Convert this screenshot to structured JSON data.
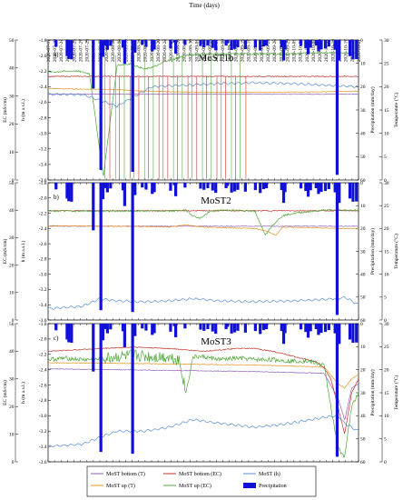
{
  "figure": {
    "top_axis_title": "Time (days)",
    "dates": [
      "2020-07-17",
      "2020-07-19",
      "2020-07-21",
      "2020-07-23",
      "2020-07-25",
      "2020-07-27",
      "2020-07-29",
      "2020-07-31",
      "2020-08-02",
      "2020-08-04",
      "2020-08-06",
      "2020-08-08",
      "2020-08-10",
      "2020-08-12",
      "2020-08-14",
      "2020-08-16",
      "2020-08-18",
      "2020-08-20",
      "2020-08-22",
      "2020-08-24",
      "2020-08-26",
      "2020-08-28",
      "2020-08-30",
      "2020-09-01",
      "2020-09-03",
      "2020-09-05",
      "2020-09-07",
      "2020-09-09",
      "2020-09-11",
      "2020-09-13",
      "2020-09-15",
      "2020-09-17",
      "2020-09-19",
      "2020-09-21",
      "2020-09-23",
      "2020-09-25",
      "2020-09-27",
      "2020-09-29",
      "2020-10-01",
      "2020-10-03",
      "2020-10-05",
      "2020-10-07",
      "2020-10-09",
      "2020-10-11",
      "2020-10-13",
      "2020-10-15",
      "2020-10-17",
      "2020-10-19",
      "2020-10-21"
    ],
    "colors": {
      "bottom_t": "#8e63b5",
      "up_t": "#e8951e",
      "bottom_ec": "#c2332a",
      "up_ec": "#4fa83a",
      "h": "#5b8fd6",
      "precip": "#1010d8"
    },
    "legend": [
      {
        "key": "bottom_t",
        "label": "MoST bottom (T)",
        "kind": "line"
      },
      {
        "key": "bottom_ec",
        "label": "MoST bottom (EC)",
        "kind": "line"
      },
      {
        "key": "h",
        "label": "MoST (h)",
        "kind": "line"
      },
      {
        "key": "up_t",
        "label": "MoST up (T)",
        "kind": "line"
      },
      {
        "key": "up_ec",
        "label": "MoST up (EC)",
        "kind": "line"
      },
      {
        "key": "precip",
        "label": "Precipitation",
        "kind": "bar"
      }
    ]
  },
  "chart_data": [
    {
      "type": "line",
      "panel_label": "a)",
      "title": "MoST1b",
      "xlabel": "Time (days)",
      "y_left_outer": {
        "label": "EC (mS/cm)",
        "ticks": [
          0,
          10,
          20,
          30,
          40,
          50
        ]
      },
      "y_left_inner": {
        "label": "h (m a.s.l.)",
        "ticks": [
          -1.8,
          -2.0,
          -2.2,
          -2.4,
          -2.6,
          -2.8,
          -3.0,
          -3.2,
          -3.4,
          -3.6
        ]
      },
      "y_right_inner": {
        "label": "Precipitation (mm/day)",
        "ticks": [
          0,
          10,
          20,
          30,
          40,
          50,
          60
        ]
      },
      "y_right_outer": {
        "label": "Temperature (°C)",
        "ticks": [
          0,
          5,
          10,
          15,
          20,
          25,
          30
        ]
      },
      "precipitation": {
        "x": [
          2.3,
          5.5,
          6,
          6.8,
          13.1,
          15.3,
          15.9,
          16.5,
          17.2,
          18.1,
          21.7,
          22.2,
          24.5,
          25.2,
          27.3,
          28.4,
          30.2,
          30.8,
          35.5,
          36.6,
          37,
          39.7,
          44.2,
          45.2,
          46.3,
          47.7,
          48.6,
          51.6,
          52,
          53.2,
          54.1,
          55,
          57.2,
          60.1,
          61.5,
          62.5,
          63.3,
          67.7,
          68.3,
          68.7,
          73.3,
          74.7,
          75.4,
          76.1,
          77.7,
          78.4,
          79.2,
          80.4,
          81.4,
          83.2,
          83.8,
          84.4,
          87.5,
          88.4,
          89.4
        ],
        "y": [
          2.9,
          6.9,
          8.1,
          8.3,
          20.8,
          55.7,
          7.2,
          2.4,
          4.2,
          2.5,
          3.3,
          10.2,
          56.5,
          5.4,
          2.1,
          3,
          4.9,
          4.1,
          3.5,
          1.1,
          5.9,
          2.1,
          2.6,
          3.1,
          2.4,
          3.4,
          4.4,
          2.4,
          1.4,
          4.3,
          3.8,
          3.1,
          3.9,
          3.2,
          4.5,
          2.8,
          2.4,
          3.2,
          8.8,
          4.1,
          2.5,
          3.6,
          6.1,
          3.3,
          2.4,
          4.9,
          4,
          3.6,
          2.8,
          4.2,
          57.8,
          8.8,
          6.9,
          8.3,
          8.2
        ]
      },
      "series": [
        {
          "name": "MoST bottom (T)",
          "key": "bottom_t",
          "axis": "temperature",
          "x": [
            0,
            90
          ],
          "y": [
            18.4,
            18.4
          ]
        },
        {
          "name": "MoST up (T)",
          "key": "up_t",
          "axis": "temperature",
          "x": [
            0,
            18,
            27,
            35,
            50,
            65,
            80,
            90
          ],
          "y": [
            19.6,
            19.4,
            19.1,
            18.9,
            18.8,
            18.8,
            18.9,
            19.0
          ]
        },
        {
          "name": "MoST bottom (EC)",
          "key": "bottom_ec",
          "axis": "ec",
          "x": [
            0,
            90
          ],
          "y": [
            37.0,
            37.0
          ]
        },
        {
          "name": "MoST up (EC)",
          "key": "up_ec",
          "axis": "ec",
          "x": [
            0,
            8,
            12,
            16,
            20,
            24,
            26,
            28,
            32,
            34,
            36,
            40,
            44,
            48,
            52,
            56,
            60,
            64,
            68,
            72,
            76,
            80,
            84,
            86,
            88,
            90
          ],
          "y": [
            38.5,
            39,
            38,
            1,
            41,
            41.5,
            40.5,
            39.5,
            41,
            42.5,
            43,
            44.5,
            45,
            45,
            45,
            45,
            45,
            45,
            45,
            45,
            45.5,
            45.5,
            45.5,
            45.5,
            45.5,
            45.5
          ]
        },
        {
          "name": "MoST (h)",
          "key": "h",
          "axis": "h",
          "x": [
            0,
            10,
            20,
            30,
            40,
            50,
            60,
            70,
            80,
            90
          ],
          "y": [
            -2.5,
            -2.5,
            -2.65,
            -2.4,
            -2.38,
            -2.36,
            -2.35,
            -2.36,
            -2.38,
            -2.4
          ]
        }
      ]
    },
    {
      "type": "line",
      "panel_label": "b)",
      "title": "MoST2",
      "xlabel": "Time (days)",
      "y_left_outer": {
        "label": "EC (mS/cm)",
        "ticks": [
          0,
          10,
          20,
          30,
          40,
          50
        ]
      },
      "y_left_inner": {
        "label": "h (m a.s.l.)",
        "ticks": [
          -1.8,
          -2.0,
          -2.2,
          -2.4,
          -2.6,
          -2.8,
          -3.0,
          -3.2,
          -3.4,
          -3.6
        ]
      },
      "y_right_inner": {
        "label": "Precipitation (mm/day)",
        "ticks": [
          0,
          10,
          20,
          30,
          40,
          50,
          60
        ]
      },
      "y_right_outer": {
        "label": "Temperature (°C)",
        "ticks": [
          0,
          5,
          10,
          15,
          20,
          25,
          30
        ]
      },
      "precipitation": {
        "x": [
          2.3,
          5.5,
          6,
          6.8,
          13.1,
          15.3,
          15.9,
          16.5,
          17.2,
          18.1,
          21.7,
          22.2,
          24.5,
          25.2,
          27.3,
          28.4,
          30.2,
          30.8,
          35.5,
          36.6,
          37,
          39.7,
          44.2,
          45.2,
          46.3,
          47.7,
          48.6,
          51.6,
          52,
          53.2,
          54.1,
          55,
          57.2,
          60.1,
          61.5,
          62.5,
          63.3,
          67.7,
          68.3,
          68.7,
          73.3,
          74.7,
          75.4,
          76.1,
          77.7,
          78.4,
          79.2,
          80.4,
          81.4,
          83.2,
          83.8,
          84.4,
          87.5,
          88.4,
          89.4
        ],
        "y": [
          2.9,
          6.9,
          8.1,
          8.3,
          20.8,
          55.7,
          7.2,
          2.4,
          4.2,
          2.5,
          3.3,
          10.2,
          56.5,
          5.4,
          2.1,
          3,
          4.9,
          4.1,
          3.5,
          1.1,
          5.9,
          2.1,
          2.6,
          3.1,
          2.4,
          3.4,
          4.4,
          2.4,
          1.4,
          4.3,
          3.8,
          3.1,
          3.9,
          3.2,
          4.5,
          2.8,
          2.4,
          3.2,
          8.8,
          4.1,
          2.5,
          3.6,
          6.1,
          3.3,
          2.4,
          4.9,
          4,
          3.6,
          2.8,
          4.2,
          57.8,
          8.8,
          6.9,
          8.3,
          8.2
        ]
      },
      "series": [
        {
          "name": "MoST bottom (T)",
          "key": "bottom_t",
          "axis": "temperature",
          "x": [
            0,
            90
          ],
          "y": [
            20.5,
            20.5
          ]
        },
        {
          "name": "MoST up (T)",
          "key": "up_t",
          "axis": "temperature",
          "x": [
            0,
            30,
            35,
            40,
            45,
            50,
            55,
            60,
            63,
            66,
            68,
            75,
            80,
            84,
            86,
            90
          ],
          "y": [
            20.6,
            20.4,
            20.3,
            20.8,
            20.3,
            20.2,
            20.1,
            20.0,
            19.5,
            18.5,
            20.3,
            20.2,
            20.1,
            20.0,
            20.0,
            20.0
          ]
        },
        {
          "name": "MoST bottom (EC)",
          "key": "bottom_ec",
          "axis": "ec",
          "x": [
            0,
            90
          ],
          "y": [
            39.8,
            39.8
          ]
        },
        {
          "name": "MoST up (EC)",
          "key": "up_ec",
          "axis": "ec",
          "x": [
            0,
            20,
            25,
            30,
            35,
            40,
            42,
            44,
            47,
            50,
            55,
            60,
            63,
            65,
            68,
            72,
            76,
            80,
            84,
            86,
            90
          ],
          "y": [
            39.7,
            39.7,
            39.7,
            39.7,
            39.7,
            40,
            38,
            37,
            39.5,
            40,
            40,
            39.5,
            31,
            34.5,
            38,
            39,
            39.5,
            40,
            40,
            40,
            40
          ]
        },
        {
          "name": "MoST (h)",
          "key": "h",
          "axis": "h",
          "x": [
            0,
            10,
            15,
            20,
            28,
            35,
            42,
            50,
            60,
            70,
            80,
            84,
            86,
            90
          ],
          "y": [
            -3.45,
            -3.42,
            -3.32,
            -3.35,
            -3.36,
            -3.35,
            -3.32,
            -3.35,
            -3.36,
            -3.35,
            -3.33,
            -3.32,
            -3.3,
            -3.4
          ]
        }
      ]
    },
    {
      "type": "line",
      "panel_label": "c)",
      "title": "MoST3",
      "xlabel": "Time (days)",
      "y_left_outer": {
        "label": "EC (mS/cm)",
        "ticks": [
          0,
          10,
          20,
          30,
          40,
          50
        ]
      },
      "y_left_inner": {
        "label": "h (m a.s.l.)",
        "ticks": [
          -1.8,
          -2.0,
          -2.2,
          -2.4,
          -2.6,
          -2.8,
          -3.0,
          -3.2,
          -3.4,
          -3.6
        ]
      },
      "y_right_inner": {
        "label": "Precipitation (mm/day)",
        "ticks": [
          0,
          10,
          20,
          30,
          40,
          50,
          60
        ]
      },
      "y_right_outer": {
        "label": "Temperature (°C)",
        "ticks": [
          0,
          5,
          10,
          15,
          20,
          25,
          30
        ]
      },
      "precipitation": {
        "x": [
          2.3,
          5.5,
          6,
          6.8,
          13.1,
          15.3,
          15.9,
          16.5,
          17.2,
          18.1,
          21.7,
          22.2,
          24.5,
          25.2,
          27.3,
          28.4,
          30.2,
          30.8,
          35.5,
          36.6,
          37,
          39.7,
          44.2,
          45.2,
          46.3,
          47.7,
          48.6,
          51.6,
          52,
          53.2,
          54.1,
          55,
          57.2,
          60.1,
          61.5,
          62.5,
          63.3,
          67.7,
          68.3,
          68.7,
          73.3,
          74.7,
          75.4,
          76.1,
          77.7,
          78.4,
          79.2,
          80.4,
          81.4,
          83.2,
          83.8,
          84.4,
          87.5,
          88.4,
          89.4
        ],
        "y": [
          2.9,
          6.9,
          8.1,
          8.3,
          20.8,
          55.7,
          7.2,
          2.4,
          4.2,
          2.5,
          3.3,
          10.2,
          56.5,
          5.4,
          2.1,
          3,
          4.9,
          4.1,
          3.5,
          1.1,
          5.9,
          2.1,
          2.6,
          3.1,
          2.4,
          3.4,
          4.4,
          2.4,
          1.4,
          4.3,
          3.8,
          3.1,
          3.9,
          3.2,
          4.5,
          2.8,
          2.4,
          3.2,
          8.8,
          4.1,
          2.5,
          3.6,
          6.1,
          3.3,
          2.4,
          4.9,
          4,
          3.6,
          2.8,
          4.2,
          57.8,
          8.8,
          6.9,
          8.3,
          8.2
        ]
      },
      "series": [
        {
          "name": "MoST bottom (T)",
          "key": "bottom_t",
          "axis": "temperature",
          "x": [
            0,
            20,
            40,
            60,
            80,
            84,
            86,
            88,
            90
          ],
          "y": [
            20.2,
            20.0,
            19.8,
            19.6,
            19.2,
            14,
            9,
            16,
            17
          ]
        },
        {
          "name": "MoST up (T)",
          "key": "up_t",
          "axis": "temperature",
          "x": [
            0,
            20,
            40,
            60,
            80,
            84,
            86,
            88,
            90
          ],
          "y": [
            21.5,
            21.4,
            21.2,
            21.0,
            20.6,
            17,
            16,
            18,
            19
          ]
        },
        {
          "name": "MoST bottom (EC)",
          "key": "bottom_ec",
          "axis": "ec",
          "x": [
            0,
            15,
            25,
            35,
            45,
            50,
            55,
            60,
            65,
            70,
            75,
            78,
            80,
            82,
            84,
            86,
            88,
            90
          ],
          "y": [
            40,
            41,
            41.5,
            41,
            40,
            40.5,
            41,
            41,
            40,
            38.5,
            37,
            36,
            34,
            30,
            20,
            10,
            25,
            30
          ]
        },
        {
          "name": "MoST up (EC)",
          "key": "up_ec",
          "axis": "ec",
          "x": [
            0,
            5,
            10,
            15,
            20,
            25,
            30,
            35,
            38,
            40,
            42,
            45,
            50,
            55,
            60,
            65,
            70,
            75,
            80,
            84,
            86,
            88,
            90
          ],
          "y": [
            37,
            37.5,
            37,
            37,
            38,
            38.5,
            38,
            38,
            37,
            25,
            38,
            38,
            37,
            37.5,
            37,
            37,
            36.5,
            36.5,
            35,
            5,
            2,
            20,
            25
          ]
        },
        {
          "name": "MoST (h)",
          "key": "h",
          "axis": "h",
          "x": [
            0,
            10,
            15,
            20,
            28,
            35,
            42,
            50,
            60,
            70,
            80,
            84,
            86,
            90
          ],
          "y": [
            -3.4,
            -3.37,
            -3.28,
            -3.2,
            -3.2,
            -3.15,
            -3.05,
            -3.1,
            -3.15,
            -3.1,
            -3.02,
            -3.0,
            -3.1,
            -3.2
          ]
        }
      ]
    }
  ]
}
